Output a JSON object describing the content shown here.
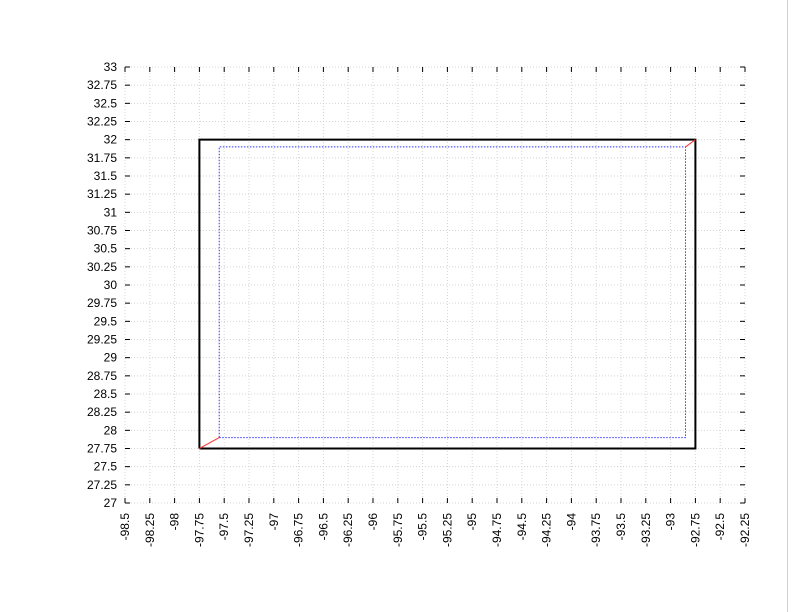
{
  "chart_data": {
    "type": "line",
    "title": "",
    "xlabel": "",
    "ylabel": "",
    "xlim": [
      -98.5,
      -92.25
    ],
    "ylim": [
      27,
      33
    ],
    "x_tick_step": 0.25,
    "y_tick_step": 0.25,
    "x_ticks": [
      "-98.5",
      "-98.25",
      "-98",
      "-97.75",
      "-97.5",
      "-97.25",
      "-97",
      "-96.75",
      "-96.5",
      "-96.25",
      "-96",
      "-95.75",
      "-95.5",
      "-95.25",
      "-95",
      "-94.75",
      "-94.5",
      "-94.25",
      "-94",
      "-93.75",
      "-93.5",
      "-93.25",
      "-93",
      "-92.75",
      "-92.5",
      "-92.25"
    ],
    "y_ticks": [
      "27",
      "27.25",
      "27.5",
      "27.75",
      "28",
      "28.25",
      "28.5",
      "28.75",
      "29",
      "29.25",
      "29.5",
      "29.75",
      "30",
      "30.25",
      "30.5",
      "30.75",
      "31",
      "31.25",
      "31.5",
      "31.75",
      "32",
      "32.25",
      "32.5",
      "32.75",
      "33"
    ],
    "grid": true,
    "legend": "none",
    "series": [
      {
        "style": "solid",
        "color": "#000000",
        "x": [
          -97.75,
          -92.75,
          -92.75,
          -97.75,
          -97.75
        ],
        "y": [
          27.75,
          27.75,
          32,
          32,
          27.75
        ]
      },
      {
        "style": "dotted",
        "color": "#3333ff",
        "x": [
          -97.55,
          -92.85,
          -92.85,
          -97.55,
          -97.55
        ],
        "y": [
          27.9,
          27.9,
          31.9,
          31.9,
          27.9
        ]
      },
      {
        "style": "solid",
        "color": "#ff3333",
        "x": [
          -97.75,
          -97.55
        ],
        "y": [
          27.75,
          27.9
        ]
      },
      {
        "style": "solid",
        "color": "#ff3333",
        "x": [
          -92.75,
          -92.85
        ],
        "y": [
          32,
          31.9
        ]
      }
    ]
  }
}
